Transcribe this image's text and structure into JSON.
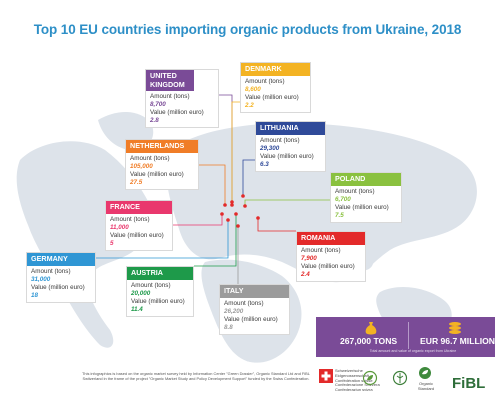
{
  "chart_data": {
    "type": "table",
    "title": "Top 10 EU countries importing organic products from Ukraine, 2018",
    "columns": [
      "Amount (tons)",
      "Value (million euro)"
    ],
    "rows": [
      {
        "country": "UNITED KINGDOM",
        "amount_label": "Amount (tons)",
        "amount": "8,700",
        "value_label": "Value (million euro)",
        "value": "2.8",
        "color": "#7a4b97"
      },
      {
        "country": "DENMARK",
        "amount_label": "Amount (tons)",
        "amount": "8,600",
        "value_label": "Value (million euro)",
        "value": "2.2",
        "color": "#f3b323"
      },
      {
        "country": "LITHUANIA",
        "amount_label": "Amount (tons)",
        "amount": "29,300",
        "value_label": "Value (million euro)",
        "value": "6.3",
        "color": "#2f4a99"
      },
      {
        "country": "NETHERLANDS",
        "amount_label": "Amount (tons)",
        "amount": "105,000",
        "value_label": "Value (million euro)",
        "value": "27.5",
        "color": "#f07d27"
      },
      {
        "country": "POLAND",
        "amount_label": "Amount (tons)",
        "amount": "6,700",
        "value_label": "Value (million euro)",
        "value": "7.5",
        "color": "#8ac13f"
      },
      {
        "country": "FRANCE",
        "amount_label": "Amount (tons)",
        "amount": "11,000",
        "value_label": "Value (million euro)",
        "value": "5",
        "color": "#e9386d"
      },
      {
        "country": "ROMANIA",
        "amount_label": "Amount (tons)",
        "amount": "7,900",
        "value_label": "Value (million euro)",
        "value": "2.4",
        "color": "#e32a2a"
      },
      {
        "country": "GERMANY",
        "amount_label": "Amount (tons)",
        "amount": "31,000",
        "value_label": "Value (million euro)",
        "value": "18",
        "color": "#2f96d4"
      },
      {
        "country": "AUSTRIA",
        "amount_label": "Amount (tons)",
        "amount": "20,000",
        "value_label": "Value (million euro)",
        "value": "11.4",
        "color": "#1e9a4a"
      },
      {
        "country": "ITALY",
        "amount_label": "Amount (tons)",
        "amount": "26,200",
        "value_label": "Value (million euro)",
        "value": "8.8",
        "color": "#9b9b9b"
      }
    ]
  },
  "totals": {
    "tons": "267,000 TONS",
    "value": "EUR 96.7 MILLION",
    "note": "Total amount and value of organic export from Ukraine",
    "color": "#7a4b97"
  },
  "footer": {
    "text": "This infographics is based on the organic market survey held by Information Center \"Green Dossier\", Organic Standard Ltd and FiBL Switzerland in the frame of the project \"Organic Market Study and Policy Development Support\" funded by the Swiss Confederation.",
    "swiss_logo_text": "Schweizerische Eidgenossenschaft Confédération suisse Confederazione Svizzera Confederaziun svizra",
    "organic_standard_text": "Organic Standard",
    "fibl_text": "FiBL"
  },
  "colors": {
    "title": "#2d8fc7",
    "map": "#dde3ea",
    "pin": "#e32a2a"
  }
}
